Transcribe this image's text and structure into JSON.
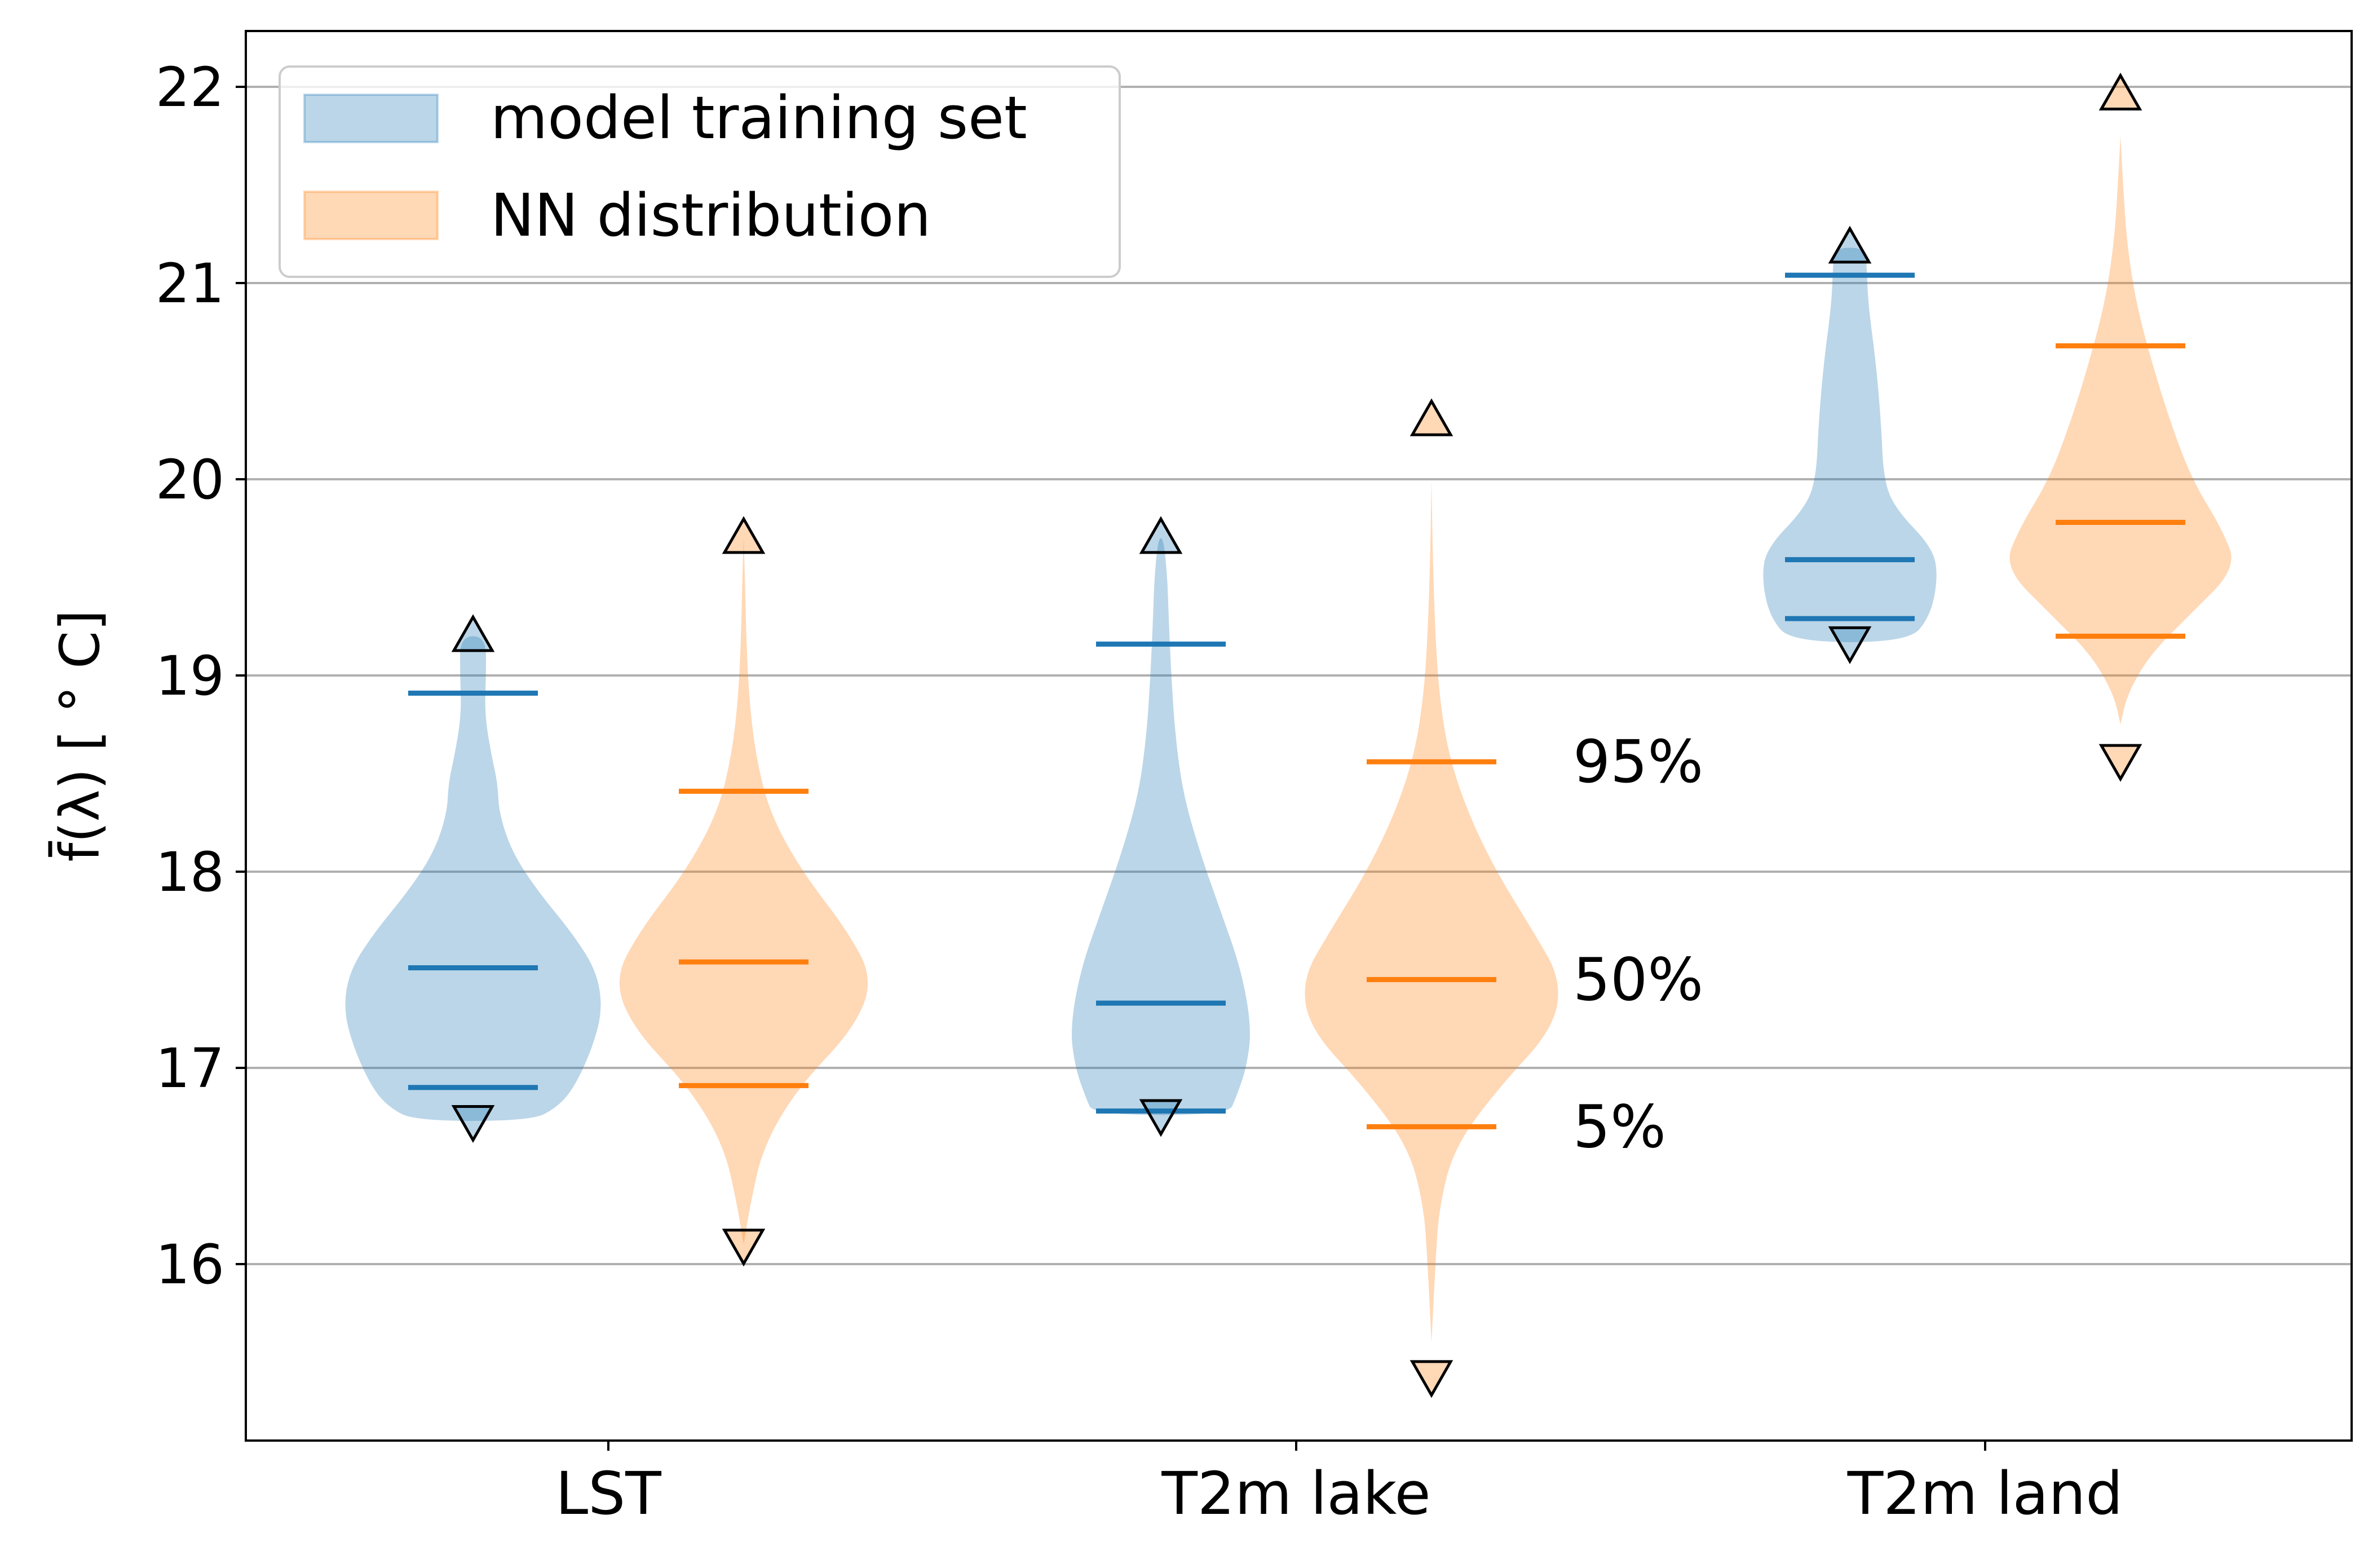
{
  "chart_data": {
    "type": "violin",
    "categories": [
      "LST",
      "T2m lake",
      "T2m land"
    ],
    "ylabel": "f̄(λ) [ ° C]",
    "ylim": [
      15.1,
      22.3
    ],
    "yticks": [
      16,
      17,
      18,
      19,
      20,
      21,
      22
    ],
    "grid": "y",
    "legend_position": "upper-left",
    "series": [
      {
        "name": "model training set",
        "color": "#1f77b4",
        "fill_alpha": 0.3,
        "values": [
          {
            "min": 16.73,
            "max": 19.2,
            "p5": 16.9,
            "p50": 17.51,
            "p95": 18.91,
            "density": [
              [
                16.73,
                0.45
              ],
              [
                16.8,
                0.65
              ],
              [
                16.9,
                0.78
              ],
              [
                17.1,
                0.92
              ],
              [
                17.3,
                1.0
              ],
              [
                17.5,
                0.95
              ],
              [
                17.7,
                0.75
              ],
              [
                17.9,
                0.5
              ],
              [
                18.1,
                0.3
              ],
              [
                18.3,
                0.2
              ],
              [
                18.45,
                0.19
              ],
              [
                18.6,
                0.14
              ],
              [
                18.8,
                0.09
              ],
              [
                19.0,
                0.1
              ],
              [
                19.2,
                0.1
              ]
            ]
          },
          {
            "min": 16.76,
            "max": 19.7,
            "p5": 16.78,
            "p50": 17.33,
            "p95": 19.16,
            "density": [
              [
                16.76,
                0.52
              ],
              [
                16.85,
                0.58
              ],
              [
                17.0,
                0.66
              ],
              [
                17.2,
                0.7
              ],
              [
                17.5,
                0.62
              ],
              [
                17.8,
                0.46
              ],
              [
                18.1,
                0.3
              ],
              [
                18.4,
                0.17
              ],
              [
                18.7,
                0.11
              ],
              [
                19.0,
                0.08
              ],
              [
                19.3,
                0.06
              ],
              [
                19.5,
                0.05
              ],
              [
                19.7,
                0.02
              ]
            ]
          },
          {
            "min": 19.17,
            "max": 21.18,
            "p5": 19.29,
            "p50": 19.59,
            "p95": 21.04,
            "density": [
              [
                19.17,
                0.45
              ],
              [
                19.3,
                0.62
              ],
              [
                19.5,
                0.68
              ],
              [
                19.65,
                0.64
              ],
              [
                19.85,
                0.35
              ],
              [
                20.0,
                0.26
              ],
              [
                20.3,
                0.24
              ],
              [
                20.6,
                0.2
              ],
              [
                20.9,
                0.14
              ],
              [
                21.1,
                0.13
              ],
              [
                21.18,
                0.11
              ]
            ]
          }
        ]
      },
      {
        "name": "NN distribution",
        "color": "#ff7f0e",
        "fill_alpha": 0.3,
        "values": [
          {
            "min": 16.1,
            "max": 19.7,
            "p5": 16.91,
            "p50": 17.54,
            "p95": 18.41,
            "density": [
              [
                16.1,
                0.0
              ],
              [
                16.3,
                0.05
              ],
              [
                16.6,
                0.15
              ],
              [
                16.9,
                0.42
              ],
              [
                17.2,
                0.85
              ],
              [
                17.45,
                1.0
              ],
              [
                17.7,
                0.8
              ],
              [
                18.0,
                0.45
              ],
              [
                18.3,
                0.2
              ],
              [
                18.6,
                0.09
              ],
              [
                18.9,
                0.04
              ],
              [
                19.2,
                0.02
              ],
              [
                19.5,
                0.01
              ],
              [
                19.7,
                0.0
              ]
            ]
          },
          {
            "min": 15.43,
            "max": 20.3,
            "p5": 16.7,
            "p50": 17.45,
            "p95": 18.56,
            "density": [
              [
                15.6,
                0.0
              ],
              [
                16.0,
                0.03
              ],
              [
                16.3,
                0.06
              ],
              [
                16.6,
                0.18
              ],
              [
                16.9,
                0.52
              ],
              [
                17.2,
                0.94
              ],
              [
                17.45,
                1.0
              ],
              [
                17.7,
                0.78
              ],
              [
                18.0,
                0.5
              ],
              [
                18.3,
                0.28
              ],
              [
                18.6,
                0.13
              ],
              [
                18.9,
                0.06
              ],
              [
                19.2,
                0.03
              ],
              [
                19.6,
                0.01
              ],
              [
                20.0,
                0.0
              ]
            ]
          },
          {
            "min": 18.57,
            "max": 21.96,
            "p5": 19.2,
            "p50": 19.78,
            "p95": 20.68,
            "density": [
              [
                18.75,
                0.0
              ],
              [
                18.9,
                0.05
              ],
              [
                19.1,
                0.22
              ],
              [
                19.3,
                0.52
              ],
              [
                19.55,
                0.9
              ],
              [
                19.75,
                0.78
              ],
              [
                20.0,
                0.55
              ],
              [
                20.3,
                0.38
              ],
              [
                20.6,
                0.24
              ],
              [
                20.9,
                0.12
              ],
              [
                21.2,
                0.05
              ],
              [
                21.5,
                0.02
              ],
              [
                21.75,
                0.0
              ]
            ]
          }
        ]
      }
    ],
    "annotations": [
      {
        "text": "95%",
        "y": 18.56
      },
      {
        "text": "50%",
        "y": 17.45
      },
      {
        "text": "5%",
        "y": 16.7
      }
    ]
  }
}
